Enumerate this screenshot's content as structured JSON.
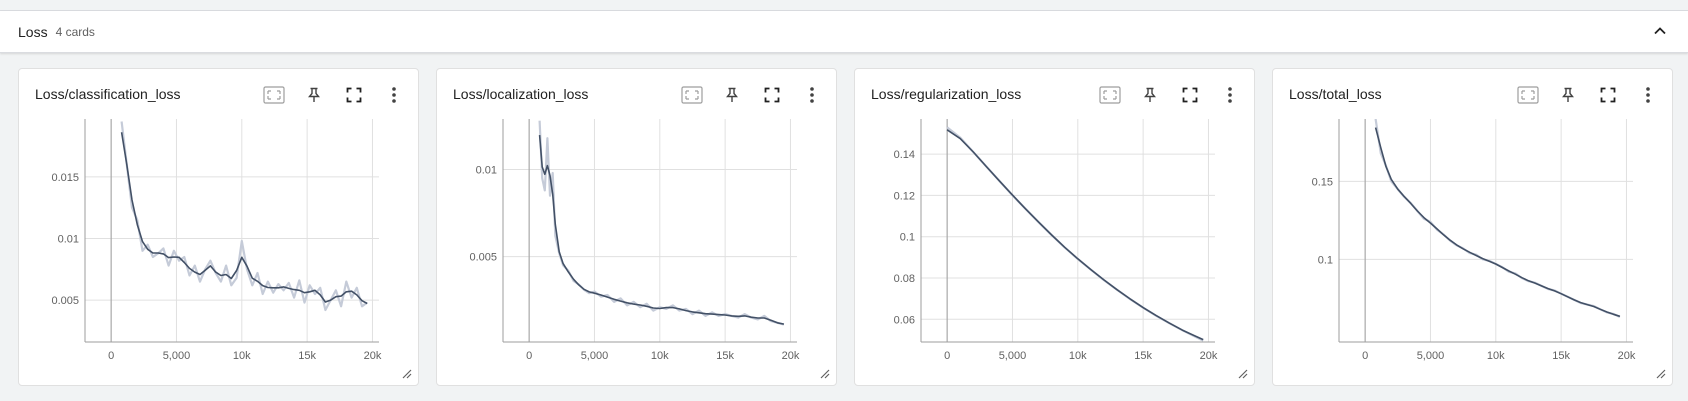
{
  "group": {
    "title": "Loss",
    "count": "4 cards"
  },
  "icons": {
    "collapse": "chevron-up-icon",
    "fit": "fit-domain-icon",
    "pin": "pin-icon",
    "fullscreen": "fullscreen-icon",
    "more": "more-vert-icon",
    "resize": "resize-handle-icon"
  },
  "colors": {
    "smoothed": "#425066",
    "raw": "#c5cbd8",
    "grid": "#e0e0e0",
    "axis": "#9e9e9e"
  },
  "chart_data": [
    {
      "title": "Loss/classification_loss",
      "type": "line",
      "xlim": [
        -2000,
        20500
      ],
      "ylim": [
        0.0016,
        0.0197
      ],
      "xticks": [
        0,
        5000,
        10000,
        15000,
        20000
      ],
      "xtick_labels": [
        "0",
        "5,000",
        "10k",
        "15k",
        "20k"
      ],
      "yticks": [
        0.005,
        0.01,
        0.015
      ],
      "ytick_labels": [
        "0.005",
        "0.01",
        "0.015"
      ],
      "series": [
        {
          "x": [
            800,
            1200,
            1600,
            2000,
            2400,
            2800,
            3200,
            3600,
            4000,
            4400,
            4800,
            5200,
            5600,
            6000,
            6400,
            6800,
            7200,
            7600,
            8000,
            8400,
            8800,
            9200,
            9600,
            10000,
            10400,
            10800,
            11200,
            11600,
            12000,
            12400,
            12800,
            13200,
            13600,
            14000,
            14400,
            14800,
            15200,
            15600,
            16000,
            16400,
            16800,
            17200,
            17600,
            18000,
            18400,
            18800,
            19200,
            19600
          ],
          "y": [
            0.0195,
            0.016,
            0.0125,
            0.0115,
            0.009,
            0.0095,
            0.0085,
            0.0088,
            0.0092,
            0.0078,
            0.009,
            0.0082,
            0.0085,
            0.007,
            0.0078,
            0.0065,
            0.0075,
            0.0082,
            0.0072,
            0.0065,
            0.0078,
            0.0062,
            0.0068,
            0.0098,
            0.0075,
            0.0062,
            0.0072,
            0.0055,
            0.0065,
            0.0056,
            0.0063,
            0.0058,
            0.0064,
            0.0052,
            0.0066,
            0.0048,
            0.0062,
            0.0055,
            0.006,
            0.0042,
            0.005,
            0.0058,
            0.0045,
            0.0065,
            0.0052,
            0.006,
            0.0045,
            0.0048
          ]
        }
      ]
    },
    {
      "title": "Loss/localization_loss",
      "type": "line",
      "xlim": [
        -2000,
        20500
      ],
      "ylim": [
        0.0001,
        0.0129
      ],
      "xticks": [
        0,
        5000,
        10000,
        15000,
        20000
      ],
      "xtick_labels": [
        "0",
        "5,000",
        "10k",
        "15k",
        "20k"
      ],
      "yticks": [
        0.005,
        0.01
      ],
      "ytick_labels": [
        "0.005",
        "0.01"
      ],
      "series": [
        {
          "x": [
            800,
            1000,
            1200,
            1400,
            1600,
            1800,
            2000,
            2300,
            2600,
            3000,
            3400,
            3800,
            4200,
            4600,
            5000,
            5500,
            6000,
            6500,
            7000,
            7500,
            8000,
            8500,
            9000,
            9500,
            10000,
            10500,
            11000,
            11500,
            12000,
            12500,
            13000,
            13500,
            14000,
            14500,
            15000,
            15500,
            16000,
            16500,
            17000,
            17500,
            18000,
            18500,
            19000,
            19500
          ],
          "y": [
            0.0128,
            0.0095,
            0.0088,
            0.0118,
            0.0085,
            0.0098,
            0.0062,
            0.0052,
            0.0045,
            0.0042,
            0.0036,
            0.0034,
            0.0031,
            0.0029,
            0.003,
            0.0027,
            0.0028,
            0.0024,
            0.0026,
            0.0022,
            0.0024,
            0.0021,
            0.0023,
            0.0019,
            0.0021,
            0.002,
            0.0022,
            0.0019,
            0.002,
            0.0017,
            0.0019,
            0.0016,
            0.0018,
            0.0016,
            0.0017,
            0.0016,
            0.0015,
            0.0017,
            0.0015,
            0.0014,
            0.0016,
            0.0013,
            0.0012,
            0.0011
          ]
        }
      ]
    },
    {
      "title": "Loss/regularization_loss",
      "type": "line",
      "xlim": [
        -2000,
        20500
      ],
      "ylim": [
        0.049,
        0.157
      ],
      "xticks": [
        0,
        5000,
        10000,
        15000,
        20000
      ],
      "xtick_labels": [
        "0",
        "5,000",
        "10k",
        "15k",
        "20k"
      ],
      "yticks": [
        0.06,
        0.08,
        0.1,
        0.12,
        0.14
      ],
      "ytick_labels": [
        "0.06",
        "0.08",
        "0.1",
        "0.12",
        "0.14"
      ],
      "series": [
        {
          "x": [
            0,
            1000,
            2000,
            3000,
            4000,
            5000,
            6000,
            7000,
            8000,
            9000,
            10000,
            11000,
            12000,
            13000,
            14000,
            15000,
            16000,
            17000,
            18000,
            19000,
            19600
          ],
          "y": [
            0.153,
            0.148,
            0.141,
            0.134,
            0.127,
            0.12,
            0.1135,
            0.107,
            0.1007,
            0.0948,
            0.0892,
            0.084,
            0.079,
            0.0743,
            0.0698,
            0.0656,
            0.0617,
            0.0581,
            0.0547,
            0.0515,
            0.0497
          ]
        }
      ]
    },
    {
      "title": "Loss/total_loss",
      "type": "line",
      "xlim": [
        -2000,
        20500
      ],
      "ylim": [
        0.047,
        0.19
      ],
      "xticks": [
        0,
        5000,
        10000,
        15000,
        20000
      ],
      "xtick_labels": [
        "0",
        "5,000",
        "10k",
        "15k",
        "20k"
      ],
      "yticks": [
        0.1,
        0.15
      ],
      "ytick_labels": [
        "0.1",
        "0.15"
      ],
      "series": [
        {
          "x": [
            800,
            1200,
            1600,
            2000,
            2500,
            3000,
            3500,
            4000,
            4500,
            5000,
            5500,
            6000,
            6500,
            7000,
            7500,
            8000,
            8500,
            9000,
            9500,
            10000,
            10500,
            11000,
            11500,
            12000,
            12500,
            13000,
            13500,
            14000,
            14500,
            15000,
            15500,
            16000,
            16500,
            17000,
            17500,
            18000,
            18500,
            19000,
            19500
          ],
          "y": [
            0.19,
            0.168,
            0.16,
            0.15,
            0.145,
            0.14,
            0.136,
            0.131,
            0.126,
            0.124,
            0.119,
            0.116,
            0.112,
            0.109,
            0.107,
            0.104,
            0.103,
            0.1,
            0.099,
            0.097,
            0.095,
            0.092,
            0.091,
            0.088,
            0.086,
            0.085,
            0.083,
            0.081,
            0.08,
            0.078,
            0.076,
            0.074,
            0.072,
            0.071,
            0.07,
            0.068,
            0.066,
            0.065,
            0.063
          ]
        }
      ]
    }
  ]
}
